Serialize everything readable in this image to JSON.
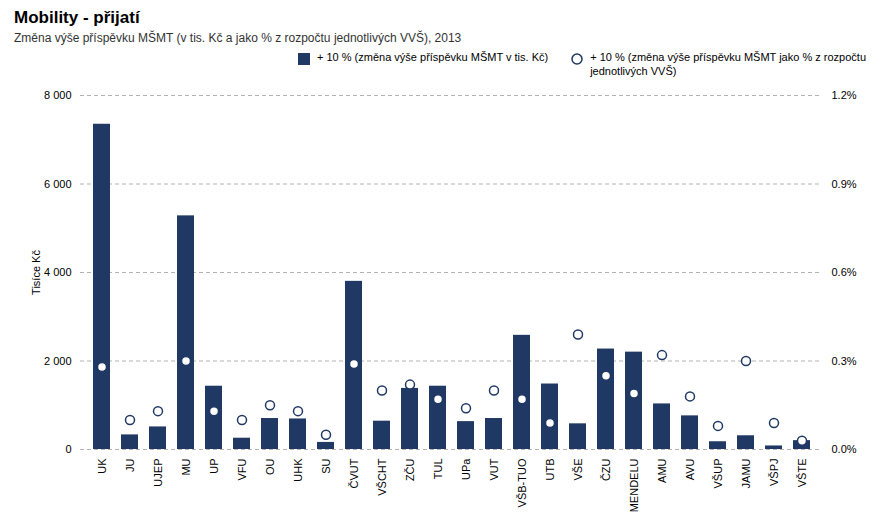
{
  "chart_data": {
    "type": "bar",
    "title": "Mobility  - přijatí",
    "subtitle": "Změna výše příspěvku MŠMT (v tis. Kč a jako % z rozpočtu jednotlivých VVŠ), 2013",
    "ylabel": "Tisíce Kč",
    "categories": [
      "UK",
      "JU",
      "UJEP",
      "MU",
      "UP",
      "VFU",
      "OU",
      "UHK",
      "SU",
      "ČVUT",
      "VŠCHT",
      "ZČU",
      "TUL",
      "UPa",
      "VUT",
      "VŠB-TUO",
      "UTB",
      "VŠE",
      "ČZU",
      "MENDELU",
      "AMU",
      "AVU",
      "VŠUP",
      "JAMU",
      "VŠPJ",
      "VŠTE"
    ],
    "series": [
      {
        "name": "+ 10 % (změna výše příspěvku MŠMT v tis. Kč)",
        "type": "bar",
        "color": "#1F3864",
        "values": [
          7350,
          330,
          510,
          5280,
          1430,
          255,
          700,
          690,
          160,
          3800,
          640,
          1380,
          1430,
          630,
          700,
          2580,
          1480,
          580,
          2270,
          2200,
          1030,
          760,
          175,
          310,
          80,
          200
        ]
      },
      {
        "name": "+ 10 % (změna výše příspěvku MŠMT jako % z rozpočtu\njednotlivých VVŠ)",
        "type": "scatter",
        "marker": "circle",
        "color": "#1F3864",
        "axis": "y2",
        "values": [
          0.28,
          0.1,
          0.13,
          0.3,
          0.13,
          0.1,
          0.15,
          0.13,
          0.05,
          0.29,
          0.2,
          0.22,
          0.17,
          0.14,
          0.2,
          0.17,
          0.09,
          0.39,
          0.25,
          0.19,
          0.32,
          0.18,
          0.08,
          0.3,
          0.09,
          0.03
        ]
      }
    ],
    "ylim": [
      0,
      8000
    ],
    "yticks": [
      0,
      {
        "value": 2000,
        "label": "2 000"
      },
      {
        "value": 4000,
        "label": "4 000"
      },
      {
        "value": 6000,
        "label": "6 000"
      },
      {
        "value": 8000,
        "label": "8 000"
      }
    ],
    "y2lim": [
      0.0,
      1.2
    ],
    "y2ticks": [
      {
        "value": 0.0,
        "label": "0.0%"
      },
      {
        "value": 0.3,
        "label": "0.3%"
      },
      {
        "value": 0.6,
        "label": "0.6%"
      },
      {
        "value": 0.9,
        "label": "0.9%"
      },
      {
        "value": 1.2,
        "label": "1.2%"
      }
    ],
    "grid": true,
    "legend": "upper right"
  }
}
